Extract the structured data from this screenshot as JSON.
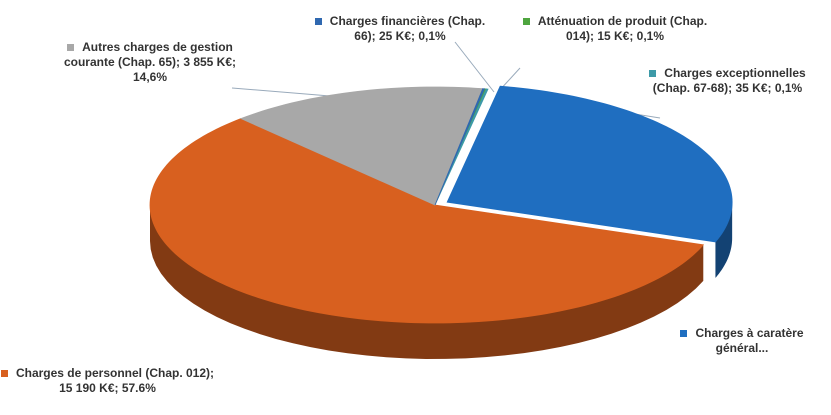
{
  "chart_data": {
    "type": "pie",
    "categories": [
      "Atténuation de produit",
      "Charges exceptionnelles",
      "Charges à caratère général...",
      "Charges de personnel",
      "Autres charges de gestion courante",
      "Charges financières"
    ],
    "values": [
      0.1,
      0.1,
      27.5,
      57.6,
      14.6,
      0.1
    ],
    "value_labels": [
      "(Chap. 014); 15 K€; 0,1%",
      "(Chap. 67-68); 35 K€; 0,1%",
      null,
      "(Chap. 012); 15 190 K€; 57.6%",
      "(Chap. 65); 3 855 K€; 14,6%",
      "(Chap. 66); 25 K€; 0,1%"
    ],
    "colors": [
      "#4ea53f",
      "#3d9aa8",
      "#1f6ec0",
      "#d8601f",
      "#a8a8a8",
      "#2f68b0"
    ]
  }
}
